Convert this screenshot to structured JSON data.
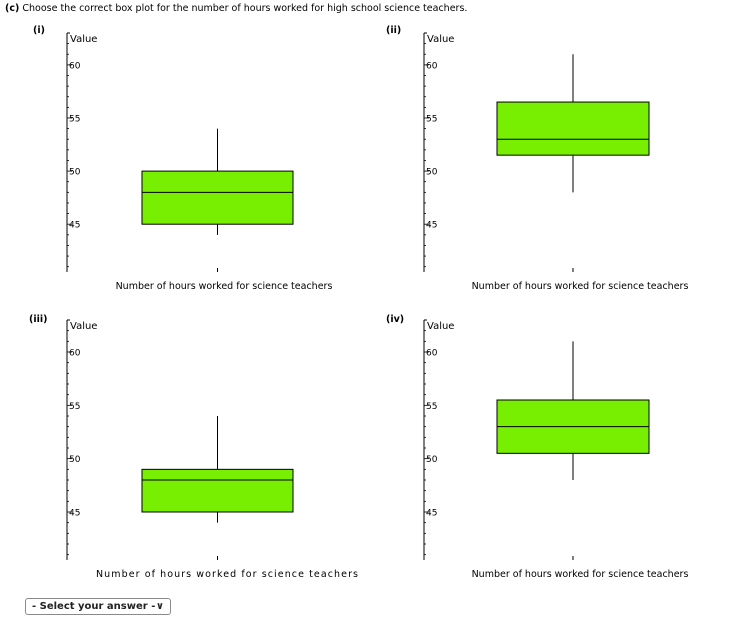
{
  "question": {
    "prefix": "(c)",
    "text": "Choose the correct box plot for the number of hours worked for high school science teachers."
  },
  "answer_select": {
    "selected": "- Select your answer -"
  },
  "colors": {
    "box_fill": "#78ee00",
    "box_stroke": "#000000",
    "axis": "#000000"
  },
  "chart_data": [
    {
      "id": "i",
      "label": "(i)",
      "type": "boxplot",
      "ylabel": "Value",
      "xlabel": "Number of hours worked for science teachers",
      "ylim": [
        40.5,
        63
      ],
      "yticks": [
        45,
        50,
        55,
        60
      ],
      "min": 44,
      "q1": 45,
      "median": 48,
      "q3": 50,
      "max": 54
    },
    {
      "id": "ii",
      "label": "(ii)",
      "type": "boxplot",
      "ylabel": "Value",
      "xlabel": "Number of hours worked for science teachers",
      "ylim": [
        40.5,
        63
      ],
      "yticks": [
        45,
        50,
        55,
        60
      ],
      "min": 48,
      "q1": 51.5,
      "median": 53,
      "q3": 56.5,
      "max": 61
    },
    {
      "id": "iii",
      "label": "(iii)",
      "type": "boxplot",
      "ylabel": "Value",
      "xlabel": "Number of hours worked for science teachers",
      "ylim": [
        40.5,
        63
      ],
      "yticks": [
        45,
        50,
        55,
        60
      ],
      "min": 44,
      "q1": 45,
      "median": 48,
      "q3": 49,
      "max": 54
    },
    {
      "id": "iv",
      "label": "(iv)",
      "type": "boxplot",
      "ylabel": "Value",
      "xlabel": "Number of hours worked for science teachers",
      "ylim": [
        40.5,
        63
      ],
      "yticks": [
        45,
        50,
        55,
        60
      ],
      "min": 48,
      "q1": 50.5,
      "median": 53,
      "q3": 55.5,
      "max": 61
    }
  ]
}
